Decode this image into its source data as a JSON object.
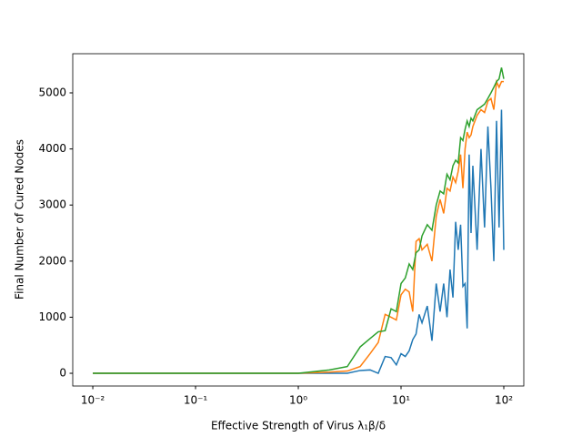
{
  "chart_data": {
    "type": "line",
    "xlabel": "Effective Strength of Virus λ₁β/δ",
    "ylabel": "Final Number of Cured Nodes",
    "xscale": "log",
    "x": [
      0.01,
      0.1,
      1,
      2,
      3,
      4,
      5,
      6,
      7,
      8,
      9,
      10,
      11,
      12,
      13,
      14,
      15,
      16,
      18,
      20,
      22,
      24,
      26,
      28,
      30,
      32,
      34,
      36,
      38,
      40,
      42,
      44,
      46,
      48,
      50,
      55,
      60,
      65,
      70,
      75,
      80,
      85,
      90,
      95,
      100
    ],
    "series": [
      {
        "color": "#1f77b4",
        "values": [
          0,
          0,
          0,
          0,
          0,
          50,
          60,
          0,
          300,
          280,
          150,
          350,
          300,
          400,
          600,
          700,
          1050,
          900,
          1200,
          580,
          1600,
          1100,
          1600,
          1000,
          1850,
          1350,
          2700,
          2200,
          2650,
          1550,
          1600,
          800,
          3900,
          2500,
          3700,
          2200,
          4000,
          2600,
          4400,
          3300,
          2000,
          4500,
          2600,
          4700,
          2200
        ]
      },
      {
        "color": "#ff7f0e",
        "values": [
          0,
          0,
          0,
          20,
          40,
          120,
          350,
          550,
          1050,
          1000,
          950,
          1400,
          1500,
          1450,
          1100,
          2350,
          2400,
          2200,
          2300,
          2000,
          2800,
          3100,
          2850,
          3300,
          3250,
          3500,
          3400,
          3600,
          3900,
          3300,
          4000,
          4300,
          4200,
          4250,
          4400,
          4600,
          4700,
          4650,
          4850,
          4900,
          4700,
          5200,
          5100,
          5200,
          5200
        ]
      },
      {
        "color": "#2ca02c",
        "values": [
          0,
          0,
          0,
          60,
          120,
          470,
          620,
          740,
          760,
          1150,
          1100,
          1600,
          1700,
          1950,
          1850,
          2150,
          2200,
          2450,
          2650,
          2550,
          3000,
          3250,
          3200,
          3550,
          3450,
          3700,
          3800,
          3750,
          4200,
          4150,
          4350,
          4500,
          4400,
          4550,
          4500,
          4700,
          4750,
          4800,
          4900,
          5000,
          5100,
          5200,
          5250,
          5450,
          5250
        ]
      }
    ],
    "xlim": [
      0.00638,
      156.6
    ],
    "ylim": [
      -227,
      5698
    ],
    "xticks": [
      {
        "value": 0.01,
        "label": "10⁻²"
      },
      {
        "value": 0.1,
        "label": "10⁻¹"
      },
      {
        "value": 1,
        "label": "10⁰"
      },
      {
        "value": 10,
        "label": "10¹"
      },
      {
        "value": 100,
        "label": "10²"
      }
    ],
    "yticks": [
      0,
      1000,
      2000,
      3000,
      4000,
      5000
    ]
  }
}
